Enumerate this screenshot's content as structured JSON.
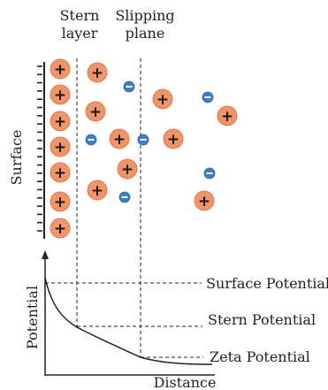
{
  "labels": {
    "stern_layer_line1": "Stern",
    "stern_layer_line2": "layer",
    "slipping_plane_line1": "Slipping",
    "slipping_plane_line2": "plane",
    "surface": "Surface",
    "potential": "Potential",
    "distance": "Distance",
    "surface_potential": "Surface Potential",
    "stern_potential": "Stern Potential",
    "zeta_potential": "Zeta Potential"
  },
  "symbols": {
    "positive": "+",
    "negative": "−"
  },
  "colors": {
    "positive_ion": "#f0956a",
    "positive_ion_edge": "#e27a4a",
    "negative_ion": "#3d7fc3",
    "negative_ion_edge": "#2a5f9a",
    "line": "#222222"
  }
}
